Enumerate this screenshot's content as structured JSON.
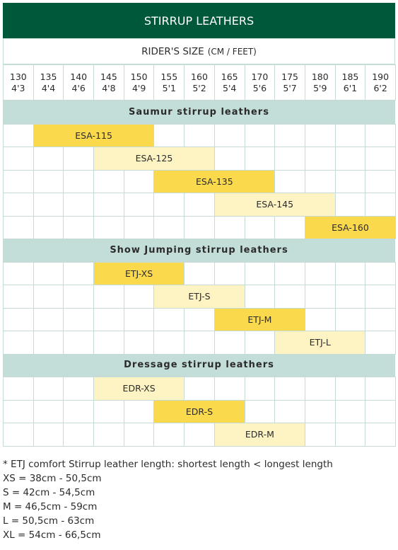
{
  "header": {
    "title": "STIRRUP LEATHERS",
    "subtitle_main": "RIDER'S SIZE",
    "subtitle_unit": "(CM / FEET)"
  },
  "sizes": [
    {
      "cm": "130",
      "ft": "4'3"
    },
    {
      "cm": "135",
      "ft": "4'4"
    },
    {
      "cm": "140",
      "ft": "4'6"
    },
    {
      "cm": "145",
      "ft": "4'8"
    },
    {
      "cm": "150",
      "ft": "4'9"
    },
    {
      "cm": "155",
      "ft": "5'1"
    },
    {
      "cm": "160",
      "ft": "5'2"
    },
    {
      "cm": "165",
      "ft": "5'4"
    },
    {
      "cm": "170",
      "ft": "5'6"
    },
    {
      "cm": "175",
      "ft": "5'7"
    },
    {
      "cm": "180",
      "ft": "5'9"
    },
    {
      "cm": "185",
      "ft": "6'1"
    },
    {
      "cm": "190",
      "ft": "6'2"
    }
  ],
  "sections": [
    {
      "title": "Saumur stirrup leathers",
      "rows": [
        {
          "label": "ESA-115",
          "first": 1,
          "last": 4,
          "tone": "dark"
        },
        {
          "label": "ESA-125",
          "first": 3,
          "last": 6,
          "tone": "light"
        },
        {
          "label": "ESA-135",
          "first": 5,
          "last": 8,
          "tone": "dark"
        },
        {
          "label": "ESA-145",
          "first": 7,
          "last": 10,
          "tone": "light"
        },
        {
          "label": "ESA-160",
          "first": 10,
          "last": 12,
          "tone": "dark"
        }
      ]
    },
    {
      "title": "Show Jumping stirrup leathers",
      "rows": [
        {
          "label": "ETJ-XS",
          "first": 3,
          "last": 5,
          "tone": "dark"
        },
        {
          "label": "ETJ-S",
          "first": 5,
          "last": 7,
          "tone": "light"
        },
        {
          "label": "ETJ-M",
          "first": 7,
          "last": 9,
          "tone": "dark"
        },
        {
          "label": "ETJ-L",
          "first": 9,
          "last": 11,
          "tone": "light"
        }
      ]
    },
    {
      "title": "Dressage stirrup leathers",
      "rows": [
        {
          "label": "EDR-XS",
          "first": 3,
          "last": 5,
          "tone": "light"
        },
        {
          "label": "EDR-S",
          "first": 5,
          "last": 7,
          "tone": "dark"
        },
        {
          "label": "EDR-M",
          "first": 7,
          "last": 9,
          "tone": "light"
        }
      ]
    }
  ],
  "notes": [
    "* ETJ comfort Stirrup leather length: shortest length < longest length",
    "XS = 38cm - 50,5cm",
    "S = 42cm - 54,5cm",
    "M = 46,5cm - 59cm",
    "L = 50,5cm - 63cm",
    "XL = 54cm - 66,5cm"
  ]
}
